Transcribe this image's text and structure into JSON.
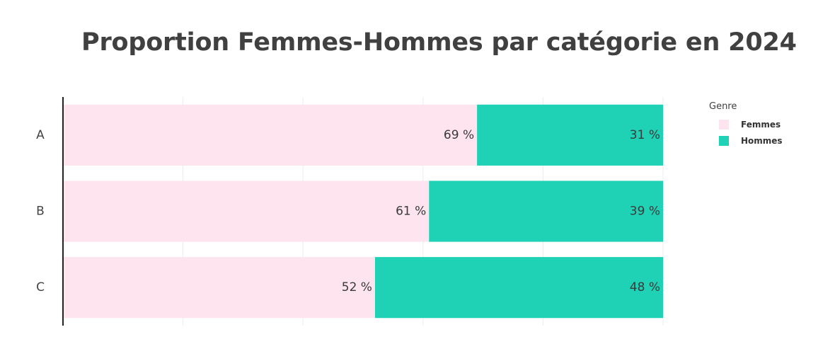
{
  "title": "Proportion Femmes-Hommes par catégorie en 2024",
  "legend": {
    "title": "Genre",
    "items": [
      {
        "label": "Femmes",
        "color": "#fde4ee"
      },
      {
        "label": "Hommes",
        "color": "#1fd1b5"
      }
    ]
  },
  "chart_data": {
    "type": "bar",
    "orientation": "horizontal",
    "stacked": true,
    "title": "Proportion Femmes-Hommes par catégorie en 2024",
    "categories": [
      "A",
      "B",
      "C"
    ],
    "series": [
      {
        "name": "Femmes",
        "values": [
          69,
          61,
          52
        ],
        "labels": [
          "69 %",
          "61 %",
          "52 %"
        ],
        "color": "#fde4ee"
      },
      {
        "name": "Hommes",
        "values": [
          31,
          39,
          48
        ],
        "labels": [
          "31 %",
          "39 %",
          "48 %"
        ],
        "color": "#1fd1b5"
      }
    ],
    "xlim": [
      0,
      100
    ],
    "xlabel": "",
    "ylabel": "",
    "grid": true,
    "legend_title": "Genre",
    "legend_position": "right"
  }
}
